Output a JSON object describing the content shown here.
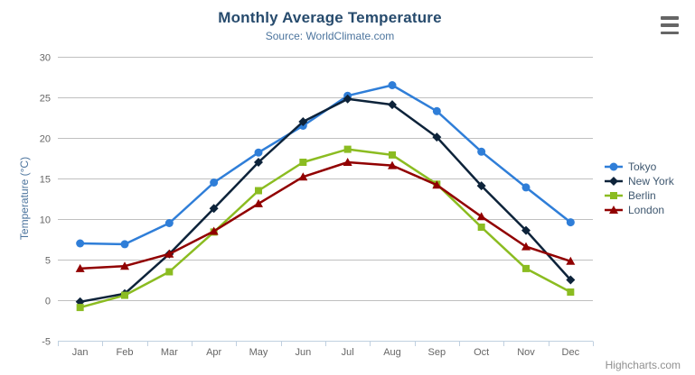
{
  "chart": {
    "context_menu_icon": "hamburger-icon",
    "credit_label": "Highcharts.com"
  },
  "chart_data": {
    "type": "line",
    "title": "Monthly Average Temperature",
    "subtitle": "Source: WorldClimate.com",
    "xlabel": "",
    "ylabel": "Temperature (°C)",
    "ylim": [
      -5,
      30
    ],
    "ytick_step": 5,
    "grid": true,
    "legend_position": "right",
    "categories": [
      "Jan",
      "Feb",
      "Mar",
      "Apr",
      "May",
      "Jun",
      "Jul",
      "Aug",
      "Sep",
      "Oct",
      "Nov",
      "Dec"
    ],
    "series": [
      {
        "name": "Tokyo",
        "color": "#2f7ed8",
        "marker": "circle",
        "values": [
          7.0,
          6.9,
          9.5,
          14.5,
          18.2,
          21.5,
          25.2,
          26.5,
          23.3,
          18.3,
          13.9,
          9.6
        ]
      },
      {
        "name": "New York",
        "color": "#0d233a",
        "marker": "diamond",
        "values": [
          -0.2,
          0.8,
          5.7,
          11.3,
          17.0,
          22.0,
          24.8,
          24.1,
          20.1,
          14.1,
          8.6,
          2.5
        ]
      },
      {
        "name": "Berlin",
        "color": "#8bbc21",
        "marker": "square",
        "values": [
          -0.9,
          0.6,
          3.5,
          8.4,
          13.5,
          17.0,
          18.6,
          17.9,
          14.3,
          9.0,
          3.9,
          1.0
        ]
      },
      {
        "name": "London",
        "color": "#910000",
        "marker": "triangle",
        "values": [
          3.9,
          4.2,
          5.7,
          8.5,
          11.9,
          15.2,
          17.0,
          16.6,
          14.2,
          10.3,
          6.6,
          4.8
        ]
      }
    ],
    "style": {
      "grid_color": "#c0c0c0",
      "axis_line_color": "#c0d0e0",
      "axis_label_color": "#666666",
      "title_color": "#274b6d",
      "subtitle_color": "#4d759e",
      "axis_title_color": "#4d759e",
      "legend_text_color": "#3e576f",
      "credit_color": "#909090"
    }
  }
}
